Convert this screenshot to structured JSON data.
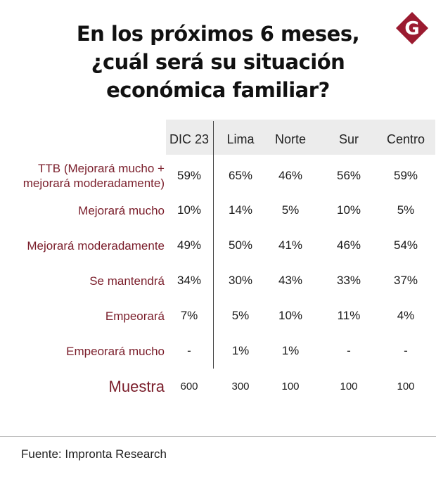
{
  "title": {
    "line1": "En los próximos 6 meses,",
    "line2": "¿cuál será su situación",
    "line3": "económica familiar?"
  },
  "logo": {
    "letter": "G",
    "color": "#9b1b30"
  },
  "colors": {
    "label": "#7a1d2a",
    "header_bg": "#ececec"
  },
  "chart_data": {
    "type": "table",
    "columns": [
      "DIC 23",
      "Lima",
      "Norte",
      "Sur",
      "Centro"
    ],
    "rows": [
      {
        "label": [
          "TTB (Mejorará mucho +",
          "mejorará moderadamente)"
        ],
        "values": [
          "59%",
          "65%",
          "46%",
          "56%",
          "59%"
        ]
      },
      {
        "label": [
          "Mejorará mucho"
        ],
        "values": [
          "10%",
          "14%",
          "5%",
          "10%",
          "5%"
        ]
      },
      {
        "label": [
          "Mejorará moderadamente"
        ],
        "values": [
          "49%",
          "50%",
          "41%",
          "46%",
          "54%"
        ]
      },
      {
        "label": [
          "Se mantendrá"
        ],
        "values": [
          "34%",
          "30%",
          "43%",
          "33%",
          "37%"
        ]
      },
      {
        "label": [
          "Empeorará"
        ],
        "values": [
          "7%",
          "5%",
          "10%",
          "11%",
          "4%"
        ]
      },
      {
        "label": [
          "Empeorará mucho"
        ],
        "values": [
          "-",
          "1%",
          "1%",
          "-",
          "-"
        ]
      }
    ],
    "sample": {
      "label": "Muestra",
      "values": [
        "600",
        "300",
        "100",
        "100",
        "100"
      ]
    }
  },
  "footer": {
    "source": "Fuente: Impronta Research"
  }
}
